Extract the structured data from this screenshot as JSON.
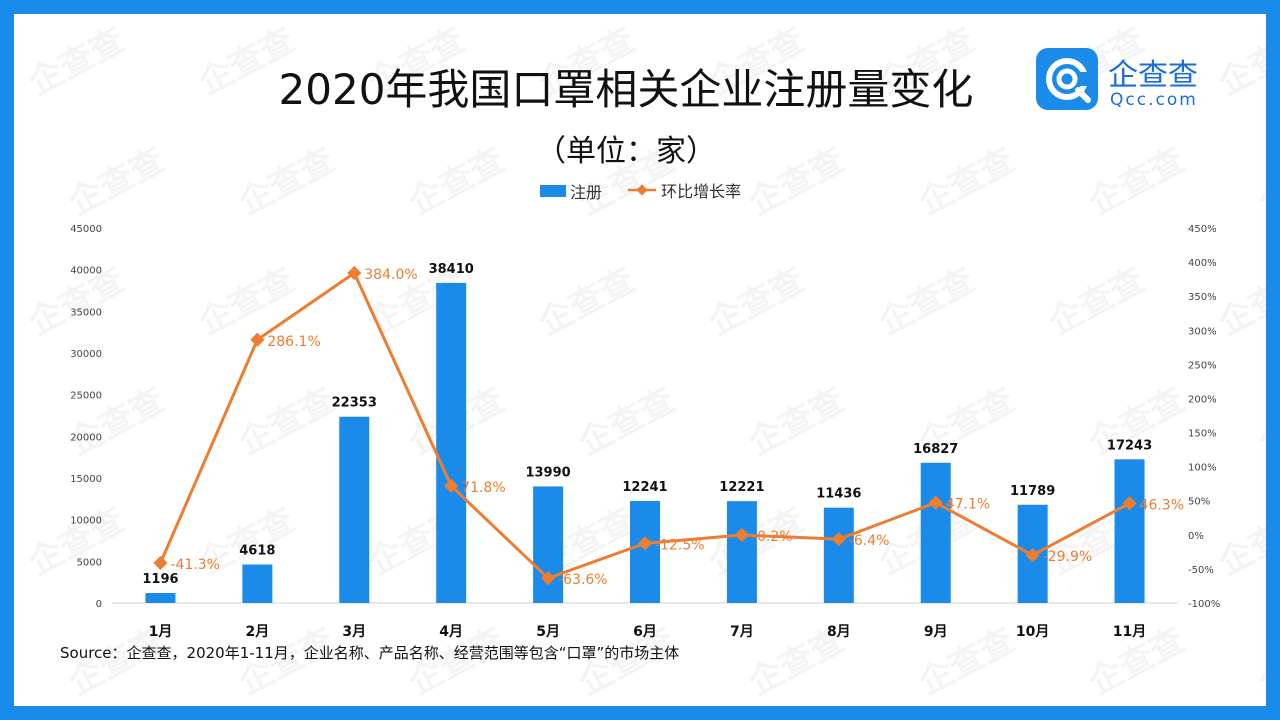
{
  "title": "2020年我国口罩相关企业注册量变化",
  "subtitle": "（单位：家）",
  "logo": {
    "name": "企查查",
    "domain": "Qcc.com",
    "icon": "qcc-logo-icon"
  },
  "watermark": "企查查",
  "source": "Source：企查查，2020年1-11月，企业名称、产品名称、经营范围等包含“口罩”的市场主体",
  "colors": {
    "bar": "#1a8be8",
    "line": "#ed7d31",
    "frame": "#1a8be8"
  },
  "chart_data": {
    "type": "bar+line",
    "categories": [
      "1月",
      "2月",
      "3月",
      "4月",
      "5月",
      "6月",
      "7月",
      "8月",
      "9月",
      "10月",
      "11月"
    ],
    "series": [
      {
        "name": "注册",
        "type": "bar",
        "axis": "left",
        "values": [
          1196,
          4618,
          22353,
          38410,
          13990,
          12241,
          12221,
          11436,
          16827,
          11789,
          17243
        ],
        "labels": [
          "1196",
          "4618",
          "22353",
          "38410",
          "13990",
          "12241",
          "12221",
          "11436",
          "16827",
          "11789",
          "17243"
        ]
      },
      {
        "name": "环比增长率",
        "type": "line",
        "axis": "right",
        "values": [
          -41.3,
          286.1,
          384.0,
          71.8,
          -63.6,
          -12.5,
          -0.2,
          -6.4,
          47.1,
          -29.9,
          46.3
        ],
        "labels": [
          "-41.3%",
          "286.1%",
          "384.0%",
          "71.8%",
          "-63.6%",
          "-12.5%",
          "-0.2%",
          "-6.4%",
          "47.1%",
          "-29.9%",
          "46.3%"
        ]
      }
    ],
    "y_left": {
      "range": [
        0,
        45000
      ],
      "ticks": [
        "0",
        "5000",
        "10000",
        "15000",
        "20000",
        "25000",
        "30000",
        "35000",
        "40000",
        "45000"
      ]
    },
    "y_right": {
      "range": [
        -100,
        450
      ],
      "ticks": [
        "-100%",
        "-50%",
        "0%",
        "50%",
        "100%",
        "150%",
        "200%",
        "250%",
        "300%",
        "350%",
        "400%",
        "450%"
      ]
    },
    "grid": false,
    "legend": "top-center"
  }
}
